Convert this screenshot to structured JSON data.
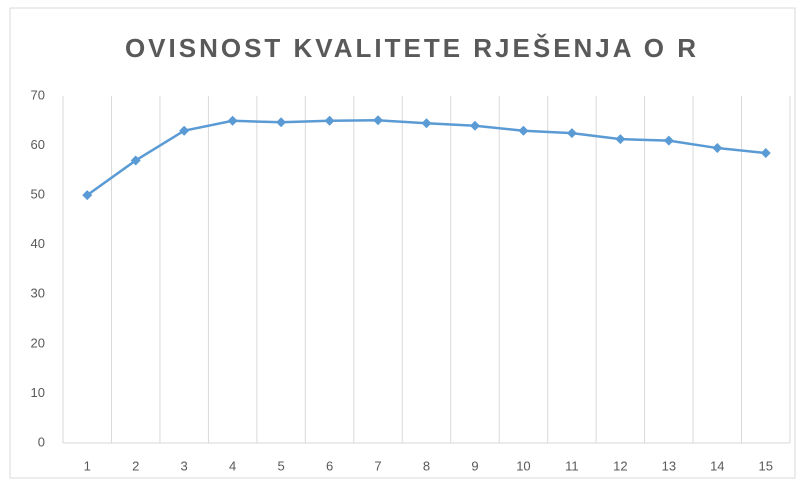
{
  "chart_data": {
    "type": "line",
    "title": "OVISNOST KVALITETE RJEŠENJA O R",
    "categories": [
      1,
      2,
      3,
      4,
      5,
      6,
      7,
      8,
      9,
      10,
      11,
      12,
      13,
      14,
      15
    ],
    "series": [
      {
        "color": "#5b9bd5",
        "values": [
          50,
          57,
          63,
          65,
          64.7,
          65,
          65.1,
          64.5,
          64,
          63,
          62.5,
          61.3,
          61,
          59.5,
          58.5
        ]
      }
    ],
    "ylim": [
      0,
      70
    ],
    "yticks": [
      0,
      10,
      20,
      30,
      40,
      50,
      60,
      70
    ],
    "grid": true
  }
}
